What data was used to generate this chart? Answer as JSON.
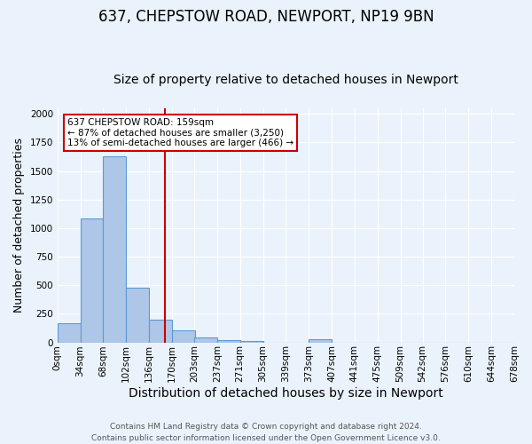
{
  "title1": "637, CHEPSTOW ROAD, NEWPORT, NP19 9BN",
  "title2": "Size of property relative to detached houses in Newport",
  "xlabel": "Distribution of detached houses by size in Newport",
  "ylabel": "Number of detached properties",
  "bin_labels": [
    "0sqm",
    "34sqm",
    "68sqm",
    "102sqm",
    "136sqm",
    "170sqm",
    "203sqm",
    "237sqm",
    "271sqm",
    "305sqm",
    "339sqm",
    "373sqm",
    "407sqm",
    "441sqm",
    "475sqm",
    "509sqm",
    "542sqm",
    "576sqm",
    "610sqm",
    "644sqm",
    "678sqm"
  ],
  "bin_edges": [
    0,
    34,
    68,
    102,
    136,
    170,
    203,
    237,
    271,
    305,
    339,
    373,
    407,
    441,
    475,
    509,
    542,
    576,
    610,
    644,
    678
  ],
  "bar_heights": [
    170,
    1085,
    1625,
    480,
    200,
    105,
    42,
    20,
    12,
    0,
    0,
    25,
    0,
    0,
    0,
    0,
    0,
    0,
    0,
    0
  ],
  "bar_color": "#aec6e8",
  "bar_edgecolor": "#5b9bd5",
  "vline_x": 159,
  "vline_color": "#cc0000",
  "ylim": [
    0,
    2050
  ],
  "annotation_text": "637 CHEPSTOW ROAD: 159sqm\n← 87% of detached houses are smaller (3,250)\n13% of semi-detached houses are larger (466) →",
  "annotation_box_color": "#ffffff",
  "annotation_box_edgecolor": "#cc0000",
  "footer": "Contains HM Land Registry data © Crown copyright and database right 2024.\nContains public sector information licensed under the Open Government Licence v3.0.",
  "bg_color": "#eaf3fb",
  "grid_color": "#ffffff",
  "title1_fontsize": 12,
  "title2_fontsize": 10,
  "xlabel_fontsize": 10,
  "ylabel_fontsize": 9,
  "tick_fontsize": 7.5,
  "footer_fontsize": 6.5
}
